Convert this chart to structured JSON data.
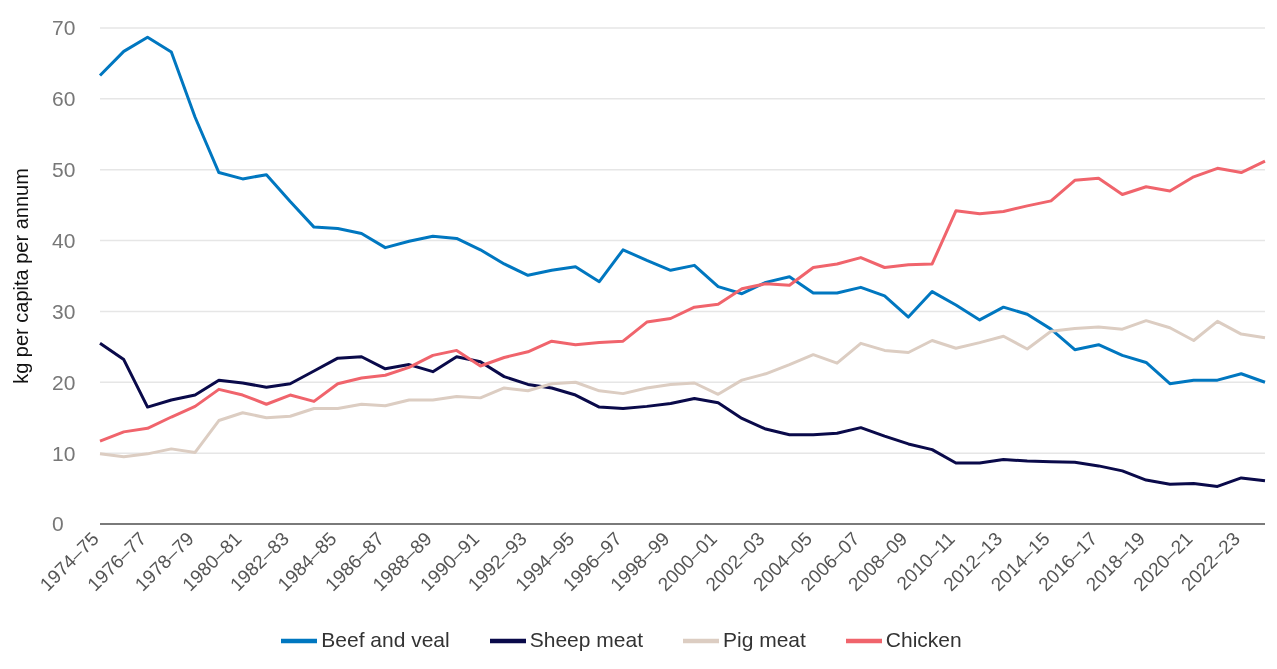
{
  "chart_data": {
    "type": "line",
    "ylabel": "kg per capita per annum",
    "categories": [
      "1974–75",
      null,
      "1976–77",
      null,
      "1978–79",
      null,
      "1980–81",
      null,
      "1982–83",
      null,
      "1984–85",
      null,
      "1986–87",
      null,
      "1988–89",
      null,
      "1990–91",
      null,
      "1992–93",
      null,
      "1994–95",
      null,
      "1996–97",
      null,
      "1998–99",
      null,
      "2000–01",
      null,
      "2002–03",
      null,
      "2004–05",
      null,
      "2006–07",
      null,
      "2008–09",
      null,
      "2010–11",
      null,
      "2012–13",
      null,
      "2014–15",
      null,
      "2016–17",
      null,
      "2018–19",
      null,
      "2020–21",
      null,
      "2022–23",
      null
    ],
    "series": [
      {
        "name": "Beef and veal",
        "color": "#0077c0",
        "values": [
          63.3,
          66.7,
          68.7,
          66.6,
          57.4,
          49.6,
          48.7,
          49.3,
          45.5,
          41.9,
          41.7,
          41.0,
          39.0,
          39.9,
          40.6,
          40.3,
          38.7,
          36.7,
          35.1,
          35.8,
          36.3,
          34.2,
          38.7,
          37.2,
          35.8,
          36.5,
          33.5,
          32.5,
          34.1,
          34.9,
          32.6,
          32.6,
          33.4,
          32.2,
          29.2,
          32.8,
          30.9,
          28.8,
          30.6,
          29.6,
          27.5,
          24.6,
          25.3,
          23.8,
          22.8,
          19.8,
          20.3,
          20.3,
          21.2,
          20.0
        ]
      },
      {
        "name": "Sheep meat",
        "color": "#0a0a4a",
        "values": [
          25.5,
          23.2,
          16.5,
          17.5,
          18.2,
          20.3,
          19.9,
          19.3,
          19.8,
          21.6,
          23.4,
          23.6,
          21.9,
          22.5,
          21.5,
          23.6,
          22.9,
          20.8,
          19.7,
          19.2,
          18.2,
          16.5,
          16.3,
          16.6,
          17.0,
          17.7,
          17.1,
          14.9,
          13.4,
          12.6,
          12.6,
          12.8,
          13.6,
          12.4,
          11.3,
          10.5,
          8.6,
          8.6,
          9.1,
          8.9,
          8.8,
          8.7,
          8.2,
          7.5,
          6.2,
          5.6,
          5.7,
          5.3,
          6.5,
          6.1
        ]
      },
      {
        "name": "Pig meat",
        "color": "#dccdc2",
        "values": [
          9.9,
          9.5,
          9.9,
          10.6,
          10.1,
          14.6,
          15.7,
          15.0,
          15.2,
          16.3,
          16.3,
          16.9,
          16.7,
          17.5,
          17.5,
          18.0,
          17.8,
          19.2,
          18.8,
          19.8,
          20.0,
          18.8,
          18.4,
          19.2,
          19.7,
          19.9,
          18.3,
          20.3,
          21.2,
          22.5,
          23.9,
          22.7,
          25.5,
          24.5,
          24.2,
          25.9,
          24.8,
          25.6,
          26.5,
          24.7,
          27.2,
          27.6,
          27.8,
          27.5,
          28.7,
          27.7,
          25.9,
          28.6,
          26.8,
          26.3
        ]
      },
      {
        "name": "Chicken",
        "color": "#f0646c",
        "values": [
          11.7,
          13.0,
          13.5,
          15.1,
          16.6,
          19.0,
          18.2,
          16.9,
          18.2,
          17.3,
          19.8,
          20.6,
          21.0,
          22.1,
          23.8,
          24.5,
          22.3,
          23.5,
          24.3,
          25.8,
          25.3,
          25.6,
          25.8,
          28.5,
          29.0,
          30.6,
          31.0,
          33.2,
          33.9,
          33.7,
          36.2,
          36.7,
          37.6,
          36.2,
          36.6,
          36.7,
          44.2,
          43.8,
          44.1,
          44.9,
          45.6,
          48.5,
          48.8,
          46.5,
          47.6,
          47.0,
          49.0,
          50.2,
          49.6,
          51.2
        ]
      }
    ],
    "ylim": [
      0,
      70
    ],
    "yticks": [
      0,
      10,
      20,
      30,
      40,
      50,
      60,
      70
    ],
    "grid": "y",
    "legend": "bottom",
    "marker": "none",
    "line_style": "solid"
  }
}
